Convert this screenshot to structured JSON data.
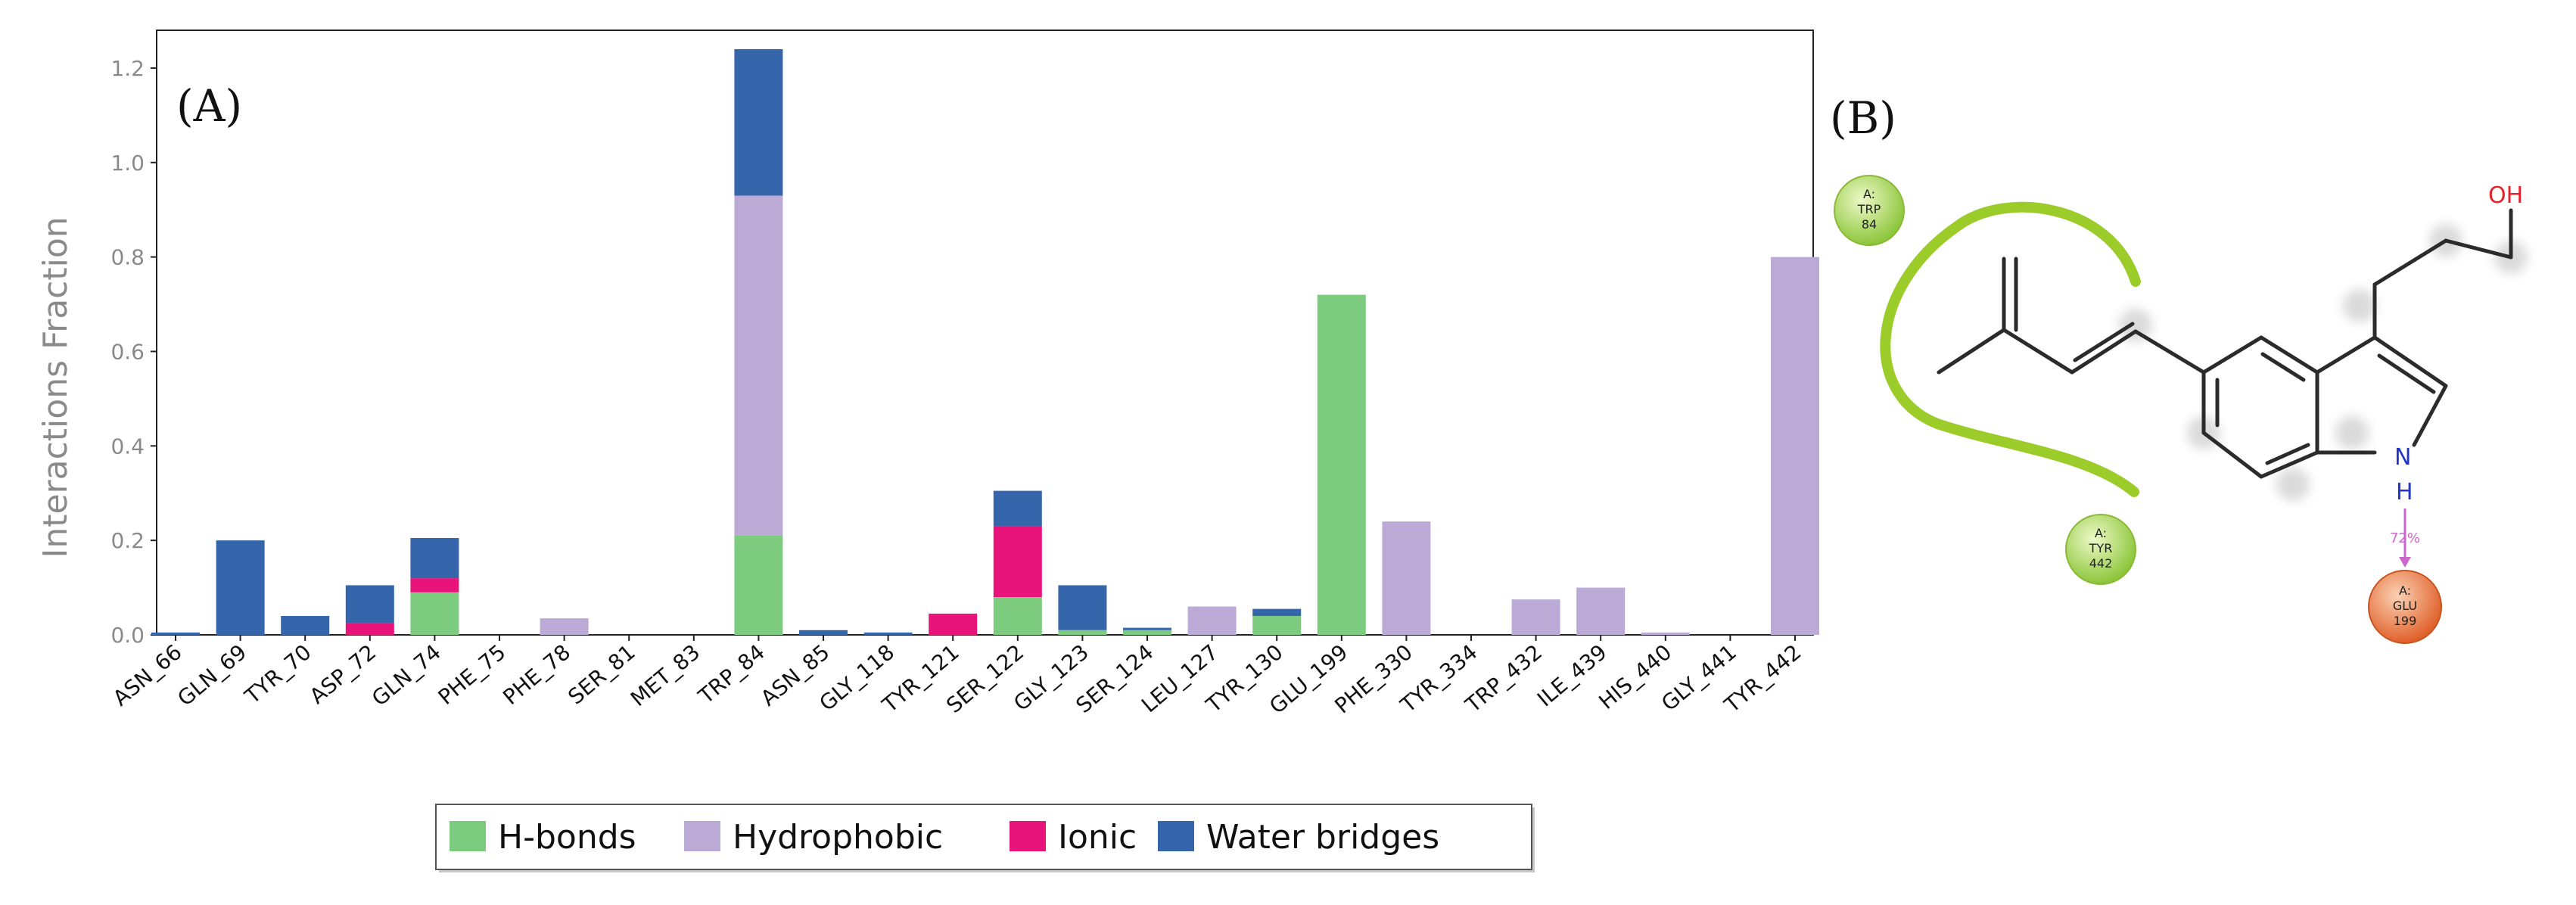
{
  "panel_a_label": "(A)",
  "panel_b_label": "(B)",
  "chart_data": {
    "type": "bar",
    "stacked": true,
    "title": "",
    "xlabel": "",
    "ylabel": "Interactions Fraction",
    "ylim": [
      0,
      1.28
    ],
    "yticks": [
      0.0,
      0.2,
      0.4,
      0.6,
      0.8,
      1.0,
      1.2
    ],
    "ytick_labels": [
      "0.0",
      "0.2",
      "0.4",
      "0.6",
      "0.8",
      "1.0",
      "1.2"
    ],
    "grid": false,
    "legend_position": "bottom-center",
    "categories": [
      "ASN_66",
      "GLN_69",
      "TYR_70",
      "ASP_72",
      "GLN_74",
      "PHE_75",
      "PHE_78",
      "SER_81",
      "MET_83",
      "TRP_84",
      "ASN_85",
      "GLY_118",
      "TYR_121",
      "SER_122",
      "GLY_123",
      "SER_124",
      "LEU_127",
      "TYR_130",
      "GLU_199",
      "PHE_330",
      "TYR_334",
      "TRP_432",
      "ILE_439",
      "HIS_440",
      "GLY_441",
      "TYR_442"
    ],
    "series": [
      {
        "name": "H-bonds",
        "color": "#7ccb7e",
        "values": [
          0,
          0,
          0,
          0,
          0.09,
          0,
          0,
          0,
          0,
          0.21,
          0,
          0,
          0,
          0.08,
          0.01,
          0.01,
          0,
          0.04,
          0.72,
          0,
          0,
          0,
          0,
          0,
          0,
          0
        ]
      },
      {
        "name": "Hydrophobic",
        "color": "#bba9d6",
        "values": [
          0,
          0,
          0,
          0,
          0,
          0,
          0.035,
          0,
          0,
          0.72,
          0,
          0,
          0,
          0,
          0,
          0,
          0.06,
          0,
          0,
          0.24,
          0,
          0.075,
          0.1,
          0.005,
          0,
          0.8
        ]
      },
      {
        "name": "Ionic",
        "color": "#e8147c",
        "values": [
          0,
          0,
          0,
          0.025,
          0.03,
          0,
          0,
          0,
          0,
          0,
          0,
          0,
          0.045,
          0.15,
          0,
          0,
          0,
          0,
          0,
          0,
          0,
          0,
          0,
          0,
          0,
          0
        ]
      },
      {
        "name": "Water bridges",
        "color": "#3565ab",
        "values": [
          0.005,
          0.2,
          0.04,
          0.08,
          0.085,
          0,
          0,
          0,
          0,
          0.31,
          0.01,
          0.005,
          0,
          0.075,
          0.095,
          0.005,
          0,
          0.015,
          0,
          0,
          0,
          0,
          0,
          0,
          0,
          0
        ]
      }
    ]
  },
  "diagram": {
    "residues": [
      {
        "line1": "A:",
        "line2": "TRP",
        "line3": "84",
        "color": "#b8de5c"
      },
      {
        "line1": "A:",
        "line2": "TYR",
        "line3": "442",
        "color": "#b8de5c"
      },
      {
        "line1": "A:",
        "line2": "GLU",
        "line3": "199",
        "color": "#ee7a3e"
      }
    ],
    "oh_label": "OH",
    "n_label": "N",
    "h_label": "H",
    "hbond_percent": "72%"
  }
}
